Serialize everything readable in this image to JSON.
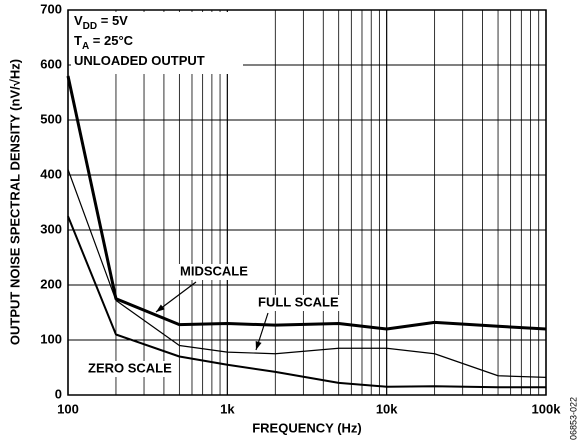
{
  "chart_data": {
    "type": "line",
    "x_label": "FREQUENCY (Hz)",
    "y_label": "OUTPUT NOISE SPECTRAL DENSITY (nV/√Hz)",
    "x": [
      100,
      200,
      500,
      1000,
      2000,
      5000,
      10000,
      20000,
      50000,
      100000
    ],
    "series": [
      {
        "name": "MIDSCALE",
        "color": "#000000",
        "line_width": 3,
        "values": [
          580,
          175,
          128,
          130,
          127,
          130,
          120,
          132,
          125,
          120
        ]
      },
      {
        "name": "FULL SCALE",
        "color": "#000000",
        "line_width": 1.2,
        "values": [
          410,
          172,
          90,
          78,
          75,
          85,
          85,
          75,
          35,
          32
        ]
      },
      {
        "name": "ZERO SCALE",
        "color": "#000000",
        "line_width": 2,
        "values": [
          325,
          110,
          70,
          55,
          42,
          22,
          15,
          16,
          14,
          14
        ]
      }
    ],
    "x_log": true,
    "xlim": [
      100,
      100000
    ],
    "xticks": [
      100,
      {
        "value": 1000,
        "label": "1k"
      },
      {
        "value": 10000,
        "label": "10k"
      },
      {
        "value": 100000,
        "label": "100k"
      }
    ],
    "x_minor_ticks": [
      200,
      300,
      400,
      500,
      600,
      700,
      800,
      900,
      2000,
      3000,
      4000,
      5000,
      6000,
      7000,
      8000,
      9000,
      20000,
      30000,
      40000,
      50000,
      60000,
      70000,
      80000,
      90000
    ],
    "ylim": [
      0,
      700
    ],
    "yticks": [
      0,
      100,
      200,
      300,
      400,
      500,
      600,
      700
    ],
    "grid": true,
    "conditions": [
      {
        "main": "V",
        "sub": "DD",
        "rest": " = 5V"
      },
      {
        "main": "T",
        "sub": "A",
        "rest": " = 25°C"
      },
      {
        "main": "UNLOADED OUTPUT"
      }
    ],
    "figure_code": "06853-022"
  }
}
